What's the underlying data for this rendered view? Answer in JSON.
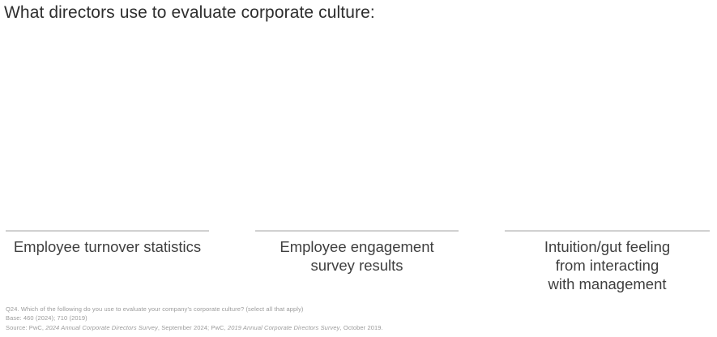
{
  "page": {
    "title": "What directors use to evaluate corporate culture:"
  },
  "columns": [
    {
      "label": "Employee turnover statistics",
      "lines": {
        "l1": "Employee turnover statistics",
        "l2": "",
        "l3": ""
      }
    },
    {
      "label": "Employee engagement survey results",
      "lines": {
        "l1": "Employee engagement",
        "l2": "survey results",
        "l3": ""
      }
    },
    {
      "label": "Intuition/gut feeling from interacting with management",
      "lines": {
        "l1": "Intuition/gut feeling",
        "l2": "from interacting",
        "l3": "with management"
      }
    }
  ],
  "footnotes": {
    "question": "Q24. Which of the following do you use to evaluate your company’s corporate culture? (select all that apply)",
    "base": "Base: 460 (2024); 710 (2019)",
    "source": {
      "p1": "Source: PwC, ",
      "i1": "2024 Annual Corporate Directors Survey",
      "p2": ", September 2024; PwC, ",
      "i2": "2019 Annual Corporate Directors Survey",
      "p3": ", October 2019."
    }
  },
  "colors": {
    "background": "#ffffff",
    "title_text": "#2e2e2e",
    "label_text": "#3f3f3f",
    "divider": "#d1d1d1",
    "footnote_text": "#9b9b9b"
  },
  "chart_data": {
    "type": "bar",
    "title": "What directors use to evaluate corporate culture:",
    "categories": [
      "Employee turnover statistics",
      "Employee engagement survey results",
      "Intuition/gut feeling from interacting with management"
    ],
    "series": [],
    "xlabel": "",
    "ylabel": "",
    "legend_position": "none",
    "grid": false,
    "notes": [
      "Q24. Which of the following do you use to evaluate your company’s corporate culture? (select all that apply)",
      "Base: 460 (2024); 710 (2019)",
      "Source: PwC, 2024 Annual Corporate Directors Survey, September 2024; PwC, 2019 Annual Corporate Directors Survey, October 2019."
    ]
  }
}
